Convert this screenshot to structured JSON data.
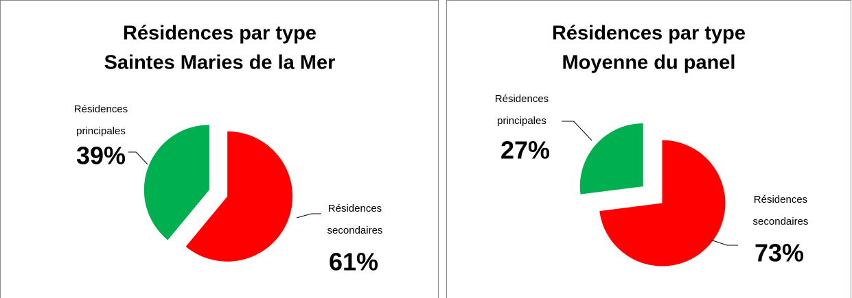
{
  "chart_data": [
    {
      "type": "pie",
      "title": [
        "Résidences par type",
        "Saintes Maries de la Mer"
      ],
      "categories": [
        "Résidences principales",
        "Résidences secondaires"
      ],
      "values": [
        39,
        61
      ],
      "value_labels": [
        "39%",
        "61%"
      ],
      "colors": [
        "#00b050",
        "#ff0000"
      ]
    },
    {
      "type": "pie",
      "title": [
        "Résidences par type",
        "Moyenne du panel"
      ],
      "categories": [
        "Résidences principales",
        "Résidences secondaires"
      ],
      "values": [
        27,
        73
      ],
      "value_labels": [
        "27%",
        "73%"
      ],
      "colors": [
        "#00b050",
        "#ff0000"
      ]
    }
  ]
}
